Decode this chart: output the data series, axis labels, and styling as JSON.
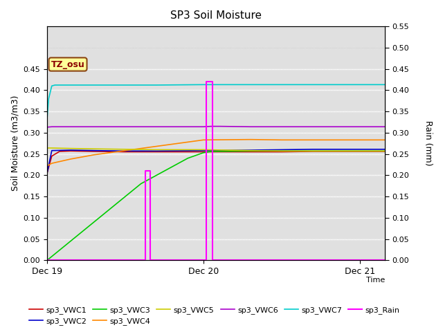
{
  "title": "SP3 Soil Moisture",
  "ylabel_left": "Soil Moisture (m3/m3)",
  "ylabel_right": "Rain (mm)",
  "xlabel": "Time",
  "xlim": [
    0,
    2.16
  ],
  "ylim_left": [
    0,
    0.55
  ],
  "ylim_right": [
    0,
    0.55
  ],
  "left_yticks": [
    0.0,
    0.05,
    0.1,
    0.15,
    0.2,
    0.25,
    0.3,
    0.35,
    0.4,
    0.45
  ],
  "right_yticks": [
    0.0,
    0.05,
    0.1,
    0.15,
    0.2,
    0.25,
    0.3,
    0.35,
    0.4,
    0.45,
    0.5,
    0.55
  ],
  "xtick_positions": [
    0.0,
    1.0,
    2.0
  ],
  "xtick_labels": [
    "Dec 19",
    "Dec 20",
    "Dec 21"
  ],
  "background_color": "#e0e0e0",
  "plot_bg_color": "#e0e0e0",
  "label_box_color": "#ffff99",
  "label_box_edge": "#8B4513",
  "label_text": "TZ_osu",
  "label_text_color": "#8B0000",
  "series": {
    "sp3_VWC1": {
      "color": "#cc0000",
      "x": [
        0.0,
        0.03,
        0.08,
        0.15,
        0.3,
        0.5,
        0.7,
        1.0,
        1.3,
        1.5,
        1.7,
        2.0,
        2.16
      ],
      "y": [
        0.205,
        0.245,
        0.256,
        0.257,
        0.256,
        0.255,
        0.255,
        0.255,
        0.255,
        0.255,
        0.256,
        0.256,
        0.256
      ]
    },
    "sp3_VWC2": {
      "color": "#0000cc",
      "x": [
        0.0,
        0.03,
        0.15,
        0.3,
        0.5,
        0.7,
        1.0,
        1.3,
        1.5,
        1.7,
        2.0,
        2.16
      ],
      "y": [
        0.205,
        0.258,
        0.259,
        0.258,
        0.257,
        0.257,
        0.258,
        0.259,
        0.26,
        0.261,
        0.261,
        0.261
      ]
    },
    "sp3_VWC3": {
      "color": "#00cc00",
      "x": [
        0.0,
        0.3,
        0.6,
        0.9,
        1.0,
        1.05,
        1.3,
        1.5,
        1.7,
        2.0,
        2.16
      ],
      "y": [
        0.0,
        0.09,
        0.18,
        0.24,
        0.253,
        0.256,
        0.257,
        0.257,
        0.257,
        0.257,
        0.257
      ]
    },
    "sp3_VWC4": {
      "color": "#ff8800",
      "x": [
        0.0,
        0.03,
        0.15,
        0.3,
        0.5,
        0.7,
        0.9,
        1.0,
        1.3,
        1.5,
        1.7,
        2.0,
        2.16
      ],
      "y": [
        0.222,
        0.228,
        0.238,
        0.248,
        0.258,
        0.268,
        0.278,
        0.283,
        0.284,
        0.283,
        0.283,
        0.283,
        0.283
      ]
    },
    "sp3_VWC5": {
      "color": "#cccc00",
      "x": [
        0.0,
        0.03,
        0.15,
        0.3,
        0.5,
        0.7,
        1.0,
        1.3,
        1.5,
        1.7,
        2.0,
        2.16
      ],
      "y": [
        0.264,
        0.264,
        0.263,
        0.262,
        0.261,
        0.26,
        0.26,
        0.258,
        0.257,
        0.257,
        0.257,
        0.257
      ]
    },
    "sp3_VWC6": {
      "color": "#aa00cc",
      "x": [
        0.0,
        0.03,
        0.2,
        0.5,
        0.7,
        1.0,
        1.05,
        1.1,
        1.3,
        1.5,
        1.7,
        2.0,
        2.16
      ],
      "y": [
        0.313,
        0.314,
        0.314,
        0.314,
        0.314,
        0.314,
        0.315,
        0.315,
        0.314,
        0.314,
        0.314,
        0.314,
        0.314
      ]
    },
    "sp3_VWC7": {
      "color": "#00cccc",
      "x": [
        0.0,
        0.01,
        0.03,
        0.05,
        0.2,
        0.5,
        0.7,
        1.0,
        1.3,
        1.5,
        1.7,
        2.0,
        2.16
      ],
      "y": [
        0.333,
        0.38,
        0.41,
        0.412,
        0.412,
        0.412,
        0.412,
        0.413,
        0.413,
        0.413,
        0.413,
        0.413,
        0.413
      ]
    },
    "sp3_Rain": {
      "color": "#ff00ff",
      "x": [
        0.0,
        0.63,
        0.63,
        0.66,
        0.66,
        1.02,
        1.02,
        1.06,
        1.06,
        2.16
      ],
      "y": [
        0.0,
        0.0,
        0.21,
        0.21,
        0.0,
        0.0,
        0.42,
        0.42,
        0.0,
        0.0
      ]
    }
  }
}
